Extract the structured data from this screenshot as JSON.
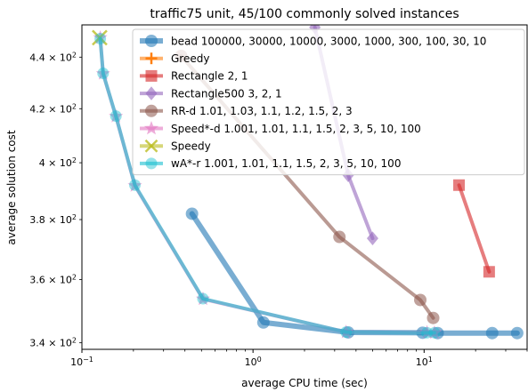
{
  "chart_data": {
    "type": "line",
    "title": "traffic75 unit, 45/100 commonly solved instances",
    "xlabel": "average CPU time (sec)",
    "ylabel": "average solution cost",
    "xscale": "log",
    "yscale": "log",
    "xlim": [
      0.1,
      40
    ],
    "ylim": [
      338,
      453
    ],
    "x_ticks": [
      {
        "value": 0.1,
        "base": "10",
        "exp": "−1"
      },
      {
        "value": 1,
        "base": "10",
        "exp": "0"
      },
      {
        "value": 10,
        "base": "10",
        "exp": "1"
      }
    ],
    "y_ticks": [
      {
        "value": 340,
        "mant": "3.4",
        "exp": "2"
      },
      {
        "value": 360,
        "mant": "3.6",
        "exp": "2"
      },
      {
        "value": 380,
        "mant": "3.8",
        "exp": "2"
      },
      {
        "value": 400,
        "mant": "4",
        "exp": "2"
      },
      {
        "value": 420,
        "mant": "4.2",
        "exp": "2"
      },
      {
        "value": 440,
        "mant": "4.4",
        "exp": "2"
      }
    ],
    "legend_position": "top-right",
    "series": [
      {
        "name": "bead 100000, 30000, 10000, 3000, 1000, 300, 100, 30, 10",
        "color": "#1f77b4",
        "marker": "circle",
        "lw": 6,
        "points": [
          [
            0.44,
            382
          ],
          [
            1.15,
            346.3
          ],
          [
            3.6,
            343.2
          ],
          [
            9.8,
            343.1
          ],
          [
            12.0,
            343.0
          ],
          [
            25.0,
            343.0
          ],
          [
            35.0,
            343.0
          ]
        ]
      },
      {
        "name": "Greedy",
        "color": "#ff7f0e",
        "marker": "plus",
        "lw": 4,
        "points": []
      },
      {
        "name": "Rectangle 2, 1",
        "color": "#d62728",
        "marker": "square",
        "lw": 4,
        "points": [
          [
            16.0,
            392
          ],
          [
            24.0,
            362.5
          ]
        ]
      },
      {
        "name": "Rectangle500 3, 2, 1",
        "color": "#9467bd",
        "marker": "diamond",
        "lw": 4,
        "points": [
          [
            2.3,
            452
          ],
          [
            3.6,
            395.5
          ],
          [
            5.0,
            373.6
          ]
        ]
      },
      {
        "name": "RR-d 1.01, 1.03, 1.1, 1.2, 1.5, 2, 3",
        "color": "#8c564b",
        "marker": "circle",
        "lw": 4,
        "points": [
          [
            0.38,
            440.5
          ],
          [
            3.2,
            374.1
          ],
          [
            9.5,
            353.4
          ],
          [
            11.3,
            347.7
          ]
        ]
      },
      {
        "name": "Speed*-d 1.001, 1.01, 1.1, 1.5, 2, 3, 5, 10, 100",
        "color": "#e377c2",
        "marker": "star",
        "lw": 4,
        "points": [
          [
            0.128,
            447.8
          ],
          [
            0.133,
            433.5
          ],
          [
            0.158,
            417.1
          ],
          [
            0.204,
            391.8
          ],
          [
            0.51,
            353.7
          ],
          [
            3.5,
            343.3
          ],
          [
            10.4,
            343.2
          ],
          [
            11.5,
            343.1
          ]
        ]
      },
      {
        "name": "Speedy",
        "color": "#bcbd22",
        "marker": "x",
        "lw": 4,
        "points": [
          [
            0.127,
            447.8
          ]
        ]
      },
      {
        "name": "wA*-r 1.001, 1.01, 1.1, 1.5, 2, 3, 5, 10, 100",
        "color": "#17becf",
        "marker": "hexagon",
        "lw": 4,
        "points": [
          [
            0.128,
            447.4
          ],
          [
            0.133,
            433.6
          ],
          [
            0.158,
            417.2
          ],
          [
            0.204,
            392.0
          ],
          [
            0.51,
            353.8
          ],
          [
            3.5,
            343.3
          ],
          [
            10.4,
            343.1
          ],
          [
            11.5,
            343.1
          ]
        ]
      }
    ]
  }
}
